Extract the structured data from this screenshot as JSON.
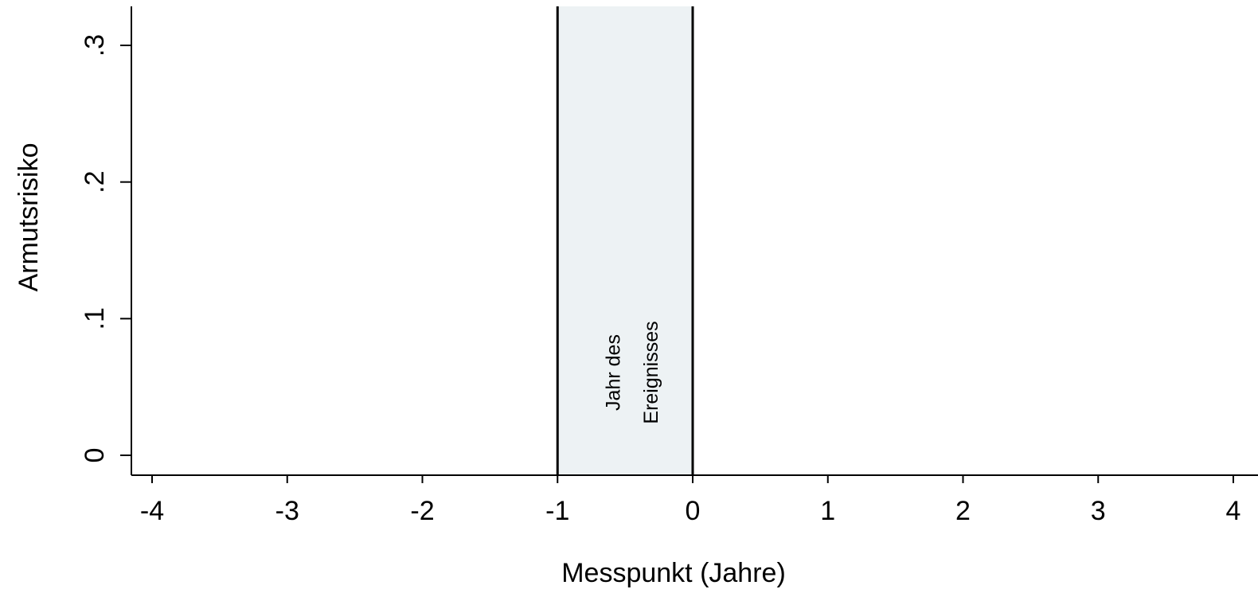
{
  "chart_data": {
    "type": "line",
    "title": "",
    "xlabel": "Messpunkt (Jahre)",
    "ylabel": "Armutsrisiko",
    "xlim": [
      -4,
      4
    ],
    "ylim": [
      0,
      0.3
    ],
    "x_ticks": [
      -4,
      -3,
      -2,
      -1,
      0,
      1,
      2,
      3,
      4
    ],
    "x_tick_labels": [
      "-4",
      "-3",
      "-2",
      "-1",
      "0",
      "1",
      "2",
      "3",
      "4"
    ],
    "y_ticks": [
      0,
      0.1,
      0.2,
      0.3
    ],
    "y_tick_labels": [
      "0",
      ".1",
      ".2",
      ".3"
    ],
    "series": [],
    "grid": false,
    "shaded_region": {
      "x_start": -1,
      "x_end": 0,
      "fill": "#edf2f4",
      "label_lines": [
        "Jahr des",
        "Ereignisses"
      ]
    },
    "vertical_lines": [
      -1,
      0
    ]
  }
}
